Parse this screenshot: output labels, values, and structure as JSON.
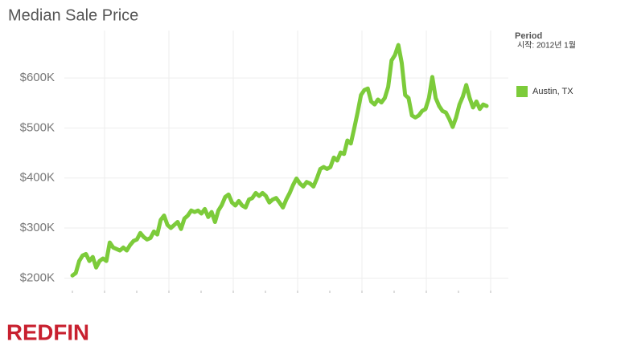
{
  "chart_data": {
    "type": "line",
    "title": "Median Sale Price",
    "legend_title": "Period",
    "legend_subtitle": "시작: 2012년 1월",
    "series": [
      {
        "name": "Austin, TX",
        "color": "#7ccb3a",
        "values": [
          205000,
          210000,
          234000,
          245000,
          248000,
          234000,
          242000,
          221000,
          234000,
          239000,
          234000,
          271000,
          261000,
          258000,
          255000,
          261000,
          255000,
          266000,
          274000,
          277000,
          290000,
          282000,
          277000,
          280000,
          293000,
          287000,
          316000,
          325000,
          306000,
          300000,
          306000,
          312000,
          298000,
          319000,
          325000,
          335000,
          332000,
          335000,
          329000,
          338000,
          322000,
          332000,
          312000,
          335000,
          346000,
          362000,
          367000,
          351000,
          345000,
          354000,
          345000,
          341000,
          357000,
          360000,
          370000,
          364000,
          370000,
          364000,
          351000,
          357000,
          360000,
          351000,
          341000,
          357000,
          370000,
          386000,
          399000,
          389000,
          383000,
          392000,
          389000,
          383000,
          399000,
          418000,
          422000,
          418000,
          422000,
          441000,
          435000,
          451000,
          448000,
          475000,
          469000,
          499000,
          531000,
          566000,
          576000,
          579000,
          553000,
          547000,
          557000,
          551000,
          560000,
          582000,
          635000,
          646000,
          666000,
          630000,
          566000,
          560000,
          525000,
          521000,
          525000,
          534000,
          538000,
          560000,
          602000,
          560000,
          544000,
          534000,
          531000,
          518000,
          502000,
          521000,
          547000,
          563000,
          586000,
          560000,
          541000,
          553000,
          538000,
          547000,
          544000
        ]
      }
    ],
    "ylim": [
      170000,
      695000
    ],
    "yticks": [
      {
        "value": 200000,
        "label": "$200K"
      },
      {
        "value": 300000,
        "label": "$300K"
      },
      {
        "value": 400000,
        "label": "$400K"
      },
      {
        "value": 500000,
        "label": "$500K"
      },
      {
        "value": 600000,
        "label": "$600K"
      }
    ],
    "grid": true,
    "legend": "right",
    "logo": "REDFIN"
  }
}
